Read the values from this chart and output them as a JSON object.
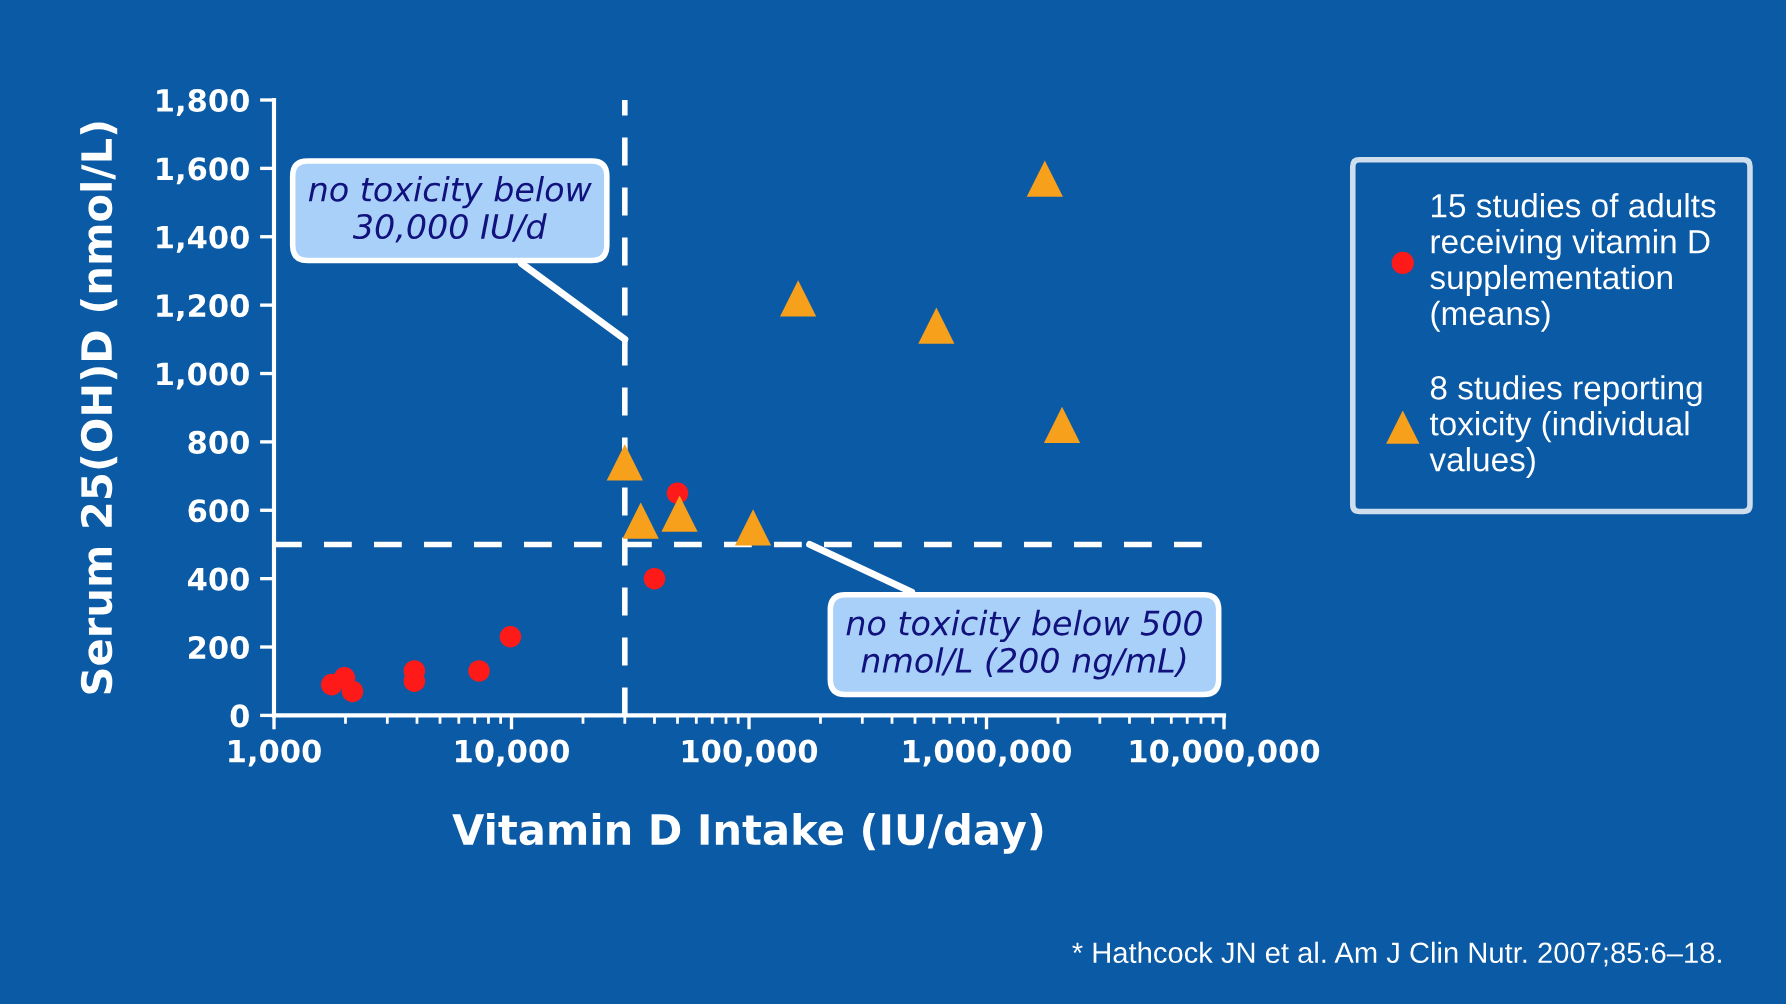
{
  "chart_data": {
    "type": "scatter",
    "xlabel": "Vitamin D Intake (IU/day)",
    "ylabel": "Serum 25(OH)D (nmol/L)",
    "log": "x",
    "grid": false,
    "legend": "right",
    "xlim": [
      1000,
      10000000
    ],
    "xticks": [
      {
        "value": 1000,
        "label": "1,000"
      },
      {
        "value": 10000,
        "label": "10,000"
      },
      {
        "value": 100000,
        "label": "100,000"
      },
      {
        "value": 1000000,
        "label": "1,000,000"
      },
      {
        "value": 10000000,
        "label": "10,000,000"
      }
    ],
    "ylim": [
      0,
      1800
    ],
    "yticks": [
      0,
      200,
      400,
      600,
      800,
      {
        "value": 1000,
        "label": "1,000"
      },
      {
        "value": 1200,
        "label": "1,200"
      },
      {
        "value": 1400,
        "label": "1,400"
      },
      {
        "value": 1600,
        "label": "1,600"
      },
      {
        "value": 1800,
        "label": "1,800"
      }
    ],
    "series": [
      {
        "name": "15 studies of adults\nreceiving vitamin D\nsupplementation\n(means)",
        "color": "#ff1a1a",
        "marker": "circle",
        "x": [
          1750,
          1980,
          2140,
          3900,
          3900,
          7300,
          9900,
          40000,
          50000
        ],
        "values": [
          90,
          110,
          70,
          130,
          100,
          130,
          230,
          400,
          650
        ]
      },
      {
        "name": "8 studies reporting\ntoxicity (individual\nvalues)",
        "color": "#f7a01c",
        "marker": "triangle",
        "x": [
          30000,
          35000,
          51000,
          104000,
          161000,
          615000,
          1760000,
          2080000
        ],
        "values": [
          740,
          570,
          590,
          550,
          1220,
          1140,
          1570,
          850
        ]
      }
    ],
    "ref_lines": [
      {
        "axis": "x",
        "value": 30000,
        "color": "#ffffff",
        "line_style": "dashed"
      },
      {
        "axis": "y",
        "value": 500,
        "color": "#ffffff",
        "line_style": "dashed"
      }
    ],
    "annotations": [
      {
        "text": "no toxicity below\n30,000 IU/d",
        "x": 30000,
        "y": 1100
      },
      {
        "text": "no toxicity below 500\nnmol/L (200 ng/mL)",
        "x": 180000,
        "y": 500
      },
      "* Hathcock JN et al. Am J Clin Nutr. 2007;85:6–18."
    ]
  }
}
